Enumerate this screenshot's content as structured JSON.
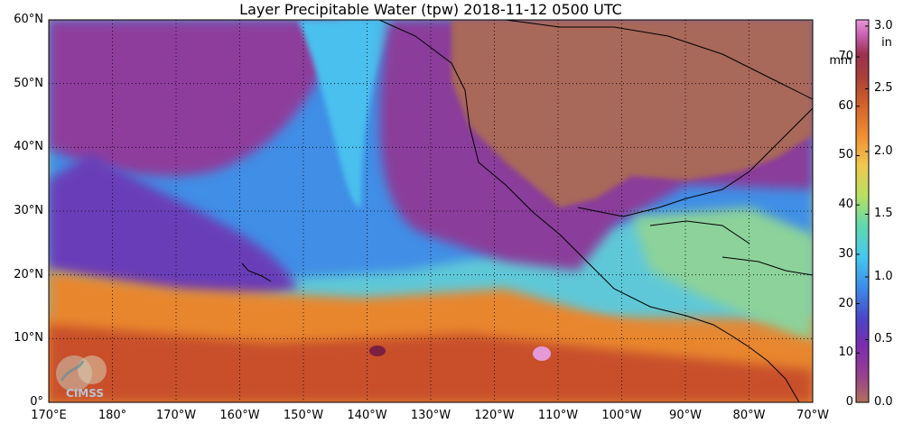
{
  "title": "Layer Precipitable Water (tpw)  2018-11-12 0500 UTC",
  "map": {
    "lat_labels": [
      "60°N",
      "50°N",
      "40°N",
      "30°N",
      "20°N",
      "10°N",
      "0°"
    ],
    "lon_labels": [
      "170°E",
      "180°",
      "170°W",
      "160°W",
      "150°W",
      "140°W",
      "130°W",
      "120°W",
      "110°W",
      "100°W",
      "90°W",
      "80°W",
      "70°W"
    ]
  },
  "colorbar": {
    "mm_ticks": [
      "70",
      "60",
      "50",
      "40",
      "30",
      "20",
      "10",
      "0"
    ],
    "in_ticks": [
      "3.0",
      "2.5",
      "2.0",
      "1.5",
      "1.0",
      "0.5",
      "0.0"
    ],
    "mm_unit": "mm",
    "in_unit": "in",
    "colors": [
      "#b0705a",
      "#9a3f8e",
      "#7a2cb0",
      "#4a46c8",
      "#3c8ce8",
      "#46c8f0",
      "#5ed8b0",
      "#b8e060",
      "#f0c850",
      "#f08c32",
      "#d2602a",
      "#a8403a",
      "#9c3050",
      "#c860b0",
      "#e898d8"
    ]
  },
  "logo": {
    "text": "CIMSS"
  },
  "colors": {
    "background": "#a8685a",
    "dry_purple": "#8e3c9c",
    "moist_blue": "#4a8ae6",
    "tropical_orange": "#e88a30"
  }
}
